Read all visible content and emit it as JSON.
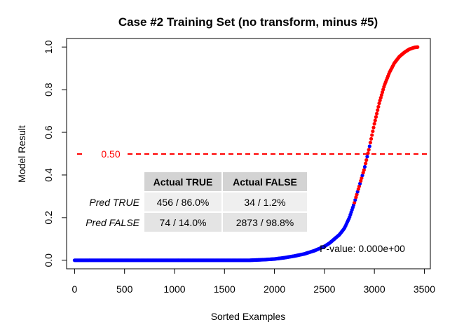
{
  "chart_data": {
    "type": "scatter",
    "title": "Case #2 Training Set (no transform, minus #5)",
    "xlabel": "Sorted Examples",
    "ylabel": "Model Result",
    "xlim": [
      -80,
      3560
    ],
    "ylim": [
      -0.04,
      1.04
    ],
    "x_ticks": [
      0,
      500,
      1000,
      1500,
      2000,
      2500,
      3000,
      3500
    ],
    "y_ticks": [
      0.0,
      0.2,
      0.4,
      0.6,
      0.8,
      1.0
    ],
    "x_tick_labels": [
      "0",
      "500",
      "1000",
      "1500",
      "2000",
      "2500",
      "3000",
      "3500"
    ],
    "y_tick_labels": [
      "0.0",
      "0.2",
      "0.4",
      "0.6",
      "0.8",
      "1.0"
    ],
    "grid": false,
    "n_points": 3437,
    "curve": {
      "x": [
        0,
        1750,
        1900,
        2000,
        2100,
        2200,
        2300,
        2400,
        2500,
        2550,
        2600,
        2650,
        2700,
        2750,
        2800,
        2850,
        2900,
        2950,
        3000,
        3050,
        3100,
        3150,
        3200,
        3250,
        3300,
        3350,
        3400,
        3437
      ],
      "y": [
        0.0,
        0.0,
        0.003,
        0.006,
        0.012,
        0.02,
        0.03,
        0.045,
        0.065,
        0.08,
        0.1,
        0.12,
        0.15,
        0.2,
        0.27,
        0.35,
        0.43,
        0.53,
        0.64,
        0.74,
        0.82,
        0.88,
        0.925,
        0.955,
        0.975,
        0.99,
        0.998,
        1.0
      ]
    },
    "series": [
      {
        "name": "",
        "color": "#0000ff"
      },
      {
        "name": "",
        "color": "#ff0000"
      }
    ],
    "threshold": {
      "value": 0.5,
      "label": "0.50",
      "color": "#ff0000",
      "style": "dashed"
    },
    "confusion_table": {
      "col_headers": [
        "Actual TRUE",
        "Actual FALSE"
      ],
      "rows": [
        {
          "label": "Pred TRUE",
          "values": [
            "456 / 86.0%",
            "34 / 1.2%"
          ]
        },
        {
          "label": "Pred FALSE",
          "values": [
            "74 / 14.0%",
            "2873 / 98.8%"
          ]
        }
      ]
    },
    "annotation": "P-value: 0.000e+00"
  }
}
